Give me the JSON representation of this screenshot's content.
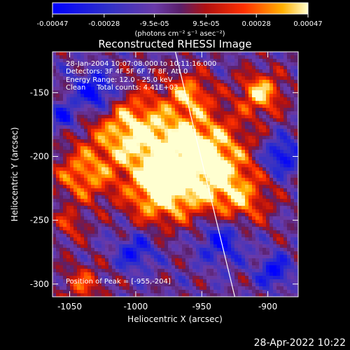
{
  "chart_data": {
    "type": "heatmap",
    "title": "Reconstructed RHESSI Image",
    "xlabel": "Heliocentric X (arcsec)",
    "ylabel": "Heliocentric Y (arcsec)",
    "xlim": [
      -1063,
      -877
    ],
    "ylim": [
      -310,
      -118
    ],
    "x_ticks": [
      -1050,
      -1000,
      -950,
      -900
    ],
    "x_tick_labels": [
      "-1050",
      "-1000",
      "-950",
      "-900"
    ],
    "y_ticks": [
      -300,
      -250,
      -200,
      -150
    ],
    "y_tick_labels": [
      "-300",
      "-250",
      "-200",
      "-150"
    ],
    "colorbar": {
      "range": [
        -0.00047,
        0.00047
      ],
      "ticks": [
        -0.00047,
        -0.00028,
        -9.5e-05,
        9.5e-05,
        0.00028,
        0.00047
      ],
      "tick_labels": [
        "-0.00047",
        "-0.00028",
        "-9.5e-05",
        "9.5e-05",
        "0.00028",
        "0.00047"
      ],
      "unit_label": "(photons cm⁻² s⁻¹ asec⁻²)"
    },
    "annotations": [
      "28-Jan-2004 10:07:08.000 to 10:11:16.000",
      "Detectors: 3F 4F 5F 6F 7F 8F, Att 0",
      "Energy Range: 12.0 - 25.0 keV",
      "Clean     Total counts: 4.41E+03"
    ],
    "peak_label": "Position of Peak = [-955,-204]",
    "peak": [
      -955,
      -204
    ],
    "limb_line": [
      [
        -970,
        -118
      ],
      [
        -925,
        -310
      ]
    ],
    "grid": false
  },
  "footer": {
    "date": "28-Apr-2022 10:22"
  }
}
